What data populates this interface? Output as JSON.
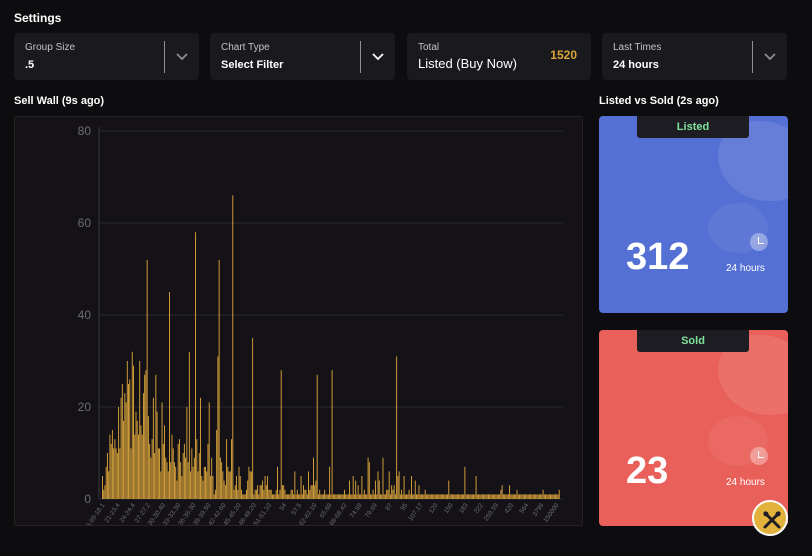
{
  "page": {
    "title": "Settings"
  },
  "filters": [
    {
      "label": "Group Size",
      "value": ".5"
    },
    {
      "label": "Chart Type",
      "value": "Select Filter"
    },
    {
      "label": "Total",
      "value": "Listed (Buy Now)",
      "count": "1520"
    },
    {
      "label": "Last Times",
      "value": "24 hours"
    }
  ],
  "sell_wall": {
    "title": "Sell Wall (9s ago)"
  },
  "listed_vs_sold": {
    "title": "Listed vs Sold (2s ago)",
    "listed": {
      "label": "Listed",
      "count": "312",
      "period": "24 hours"
    },
    "sold": {
      "label": "Sold",
      "count": "23",
      "period": "24 hours"
    }
  },
  "icons": {
    "dropdown": "chevron-down-icon",
    "clock": "clock-icon",
    "tools": "tools-icon"
  },
  "colors": {
    "bar": "#d9a43b",
    "listed": "#5570d4",
    "sold": "#e9605a",
    "badge_text": "#7ee29b",
    "accent": "#d9a43b"
  },
  "chart_data": {
    "type": "bar",
    "title": "",
    "ylim": [
      0,
      80
    ],
    "yticks": [
      "0",
      "20",
      "40",
      "60",
      "80"
    ],
    "xtick_labels": [
      "16.69-18.1",
      "21-23.4",
      "24-24.4",
      "27-27.2",
      "30-30.40",
      "33-33.30",
      "36-36.30",
      "39-39.50",
      "42-42.60",
      "45-45.20",
      "48-48.20",
      "51-51.10",
      "54",
      "57.5",
      "62-62.10",
      "65.69",
      "68-68.42",
      "74.69",
      "79.69",
      "87",
      "95",
      "107.17",
      "120",
      "150",
      "183",
      "222",
      "259.99",
      "420",
      "564",
      "3799",
      "150000"
    ],
    "values": [
      5,
      2,
      3,
      7,
      10,
      6,
      14,
      12,
      15,
      11,
      13,
      11,
      10,
      20,
      11,
      22,
      25,
      17,
      23,
      21,
      30,
      25,
      26,
      11,
      32,
      29,
      14,
      19,
      17,
      14,
      30,
      16,
      14,
      23,
      27,
      28,
      52,
      18,
      12,
      9,
      13,
      22,
      10,
      27,
      19,
      11,
      11,
      6,
      21,
      12,
      16,
      9,
      8,
      6,
      45,
      8,
      14,
      11,
      8,
      7,
      4,
      12,
      13,
      8,
      5,
      10,
      12,
      9,
      20,
      8,
      32,
      6,
      11,
      7,
      9,
      58,
      13,
      6,
      10,
      22,
      5,
      4,
      7,
      7,
      6,
      12,
      21,
      5,
      9,
      5,
      1,
      2,
      15,
      31,
      52,
      9,
      8,
      6,
      4,
      3,
      13,
      7,
      6,
      6,
      13,
      66,
      2,
      3,
      5,
      2,
      7,
      5,
      2,
      1,
      1,
      1,
      2,
      4,
      7,
      6,
      6,
      35,
      1,
      2,
      2,
      3,
      1,
      3,
      3,
      4,
      2,
      5,
      3,
      5,
      2,
      2,
      2,
      1,
      1,
      1,
      2,
      7,
      1,
      2,
      28,
      3,
      3,
      2,
      1,
      1,
      1,
      1,
      2,
      2,
      1,
      6,
      1,
      2,
      1,
      1,
      5,
      1,
      3,
      2,
      2,
      1,
      6,
      2,
      3,
      3,
      9,
      3,
      4,
      27,
      1,
      2,
      1,
      1,
      1,
      2,
      1,
      1,
      1,
      7,
      1,
      28,
      1,
      1,
      1,
      1,
      1,
      1,
      1,
      1,
      1,
      2,
      1,
      1,
      1,
      4,
      1,
      1,
      5,
      1,
      4,
      1,
      3,
      1,
      1,
      5,
      1,
      2,
      1,
      1,
      9,
      8,
      1,
      1,
      2,
      1,
      4,
      1,
      6,
      4,
      1,
      1,
      9,
      1,
      1,
      2,
      2,
      6,
      1,
      3,
      2,
      3,
      1,
      31,
      5,
      6,
      1,
      2,
      1,
      5,
      1,
      1,
      1,
      2,
      1,
      5,
      1,
      1,
      4,
      1,
      1,
      3,
      1,
      1,
      1,
      1,
      2,
      1,
      1,
      1,
      1,
      1,
      1,
      1,
      1,
      1,
      1,
      1,
      1,
      1,
      1,
      1,
      1,
      1,
      1,
      4,
      1,
      1,
      1,
      1,
      1,
      1,
      1,
      1,
      1,
      1,
      1,
      1,
      7,
      1,
      1,
      1,
      1,
      1,
      1,
      1,
      1,
      5,
      1,
      1,
      1,
      1,
      1,
      1,
      1,
      1,
      1,
      1,
      1,
      1,
      1,
      1,
      1,
      1,
      1,
      1,
      1,
      2,
      3,
      1,
      1,
      1,
      1,
      1,
      3,
      1,
      1,
      1,
      1,
      1,
      2,
      1,
      1,
      1,
      1,
      1,
      1,
      1,
      1,
      1,
      1,
      1,
      1,
      1,
      1,
      1,
      1,
      1,
      1,
      1,
      1,
      2,
      1,
      1,
      1,
      1,
      1,
      1,
      1,
      1,
      1,
      1,
      1,
      1,
      2
    ]
  }
}
